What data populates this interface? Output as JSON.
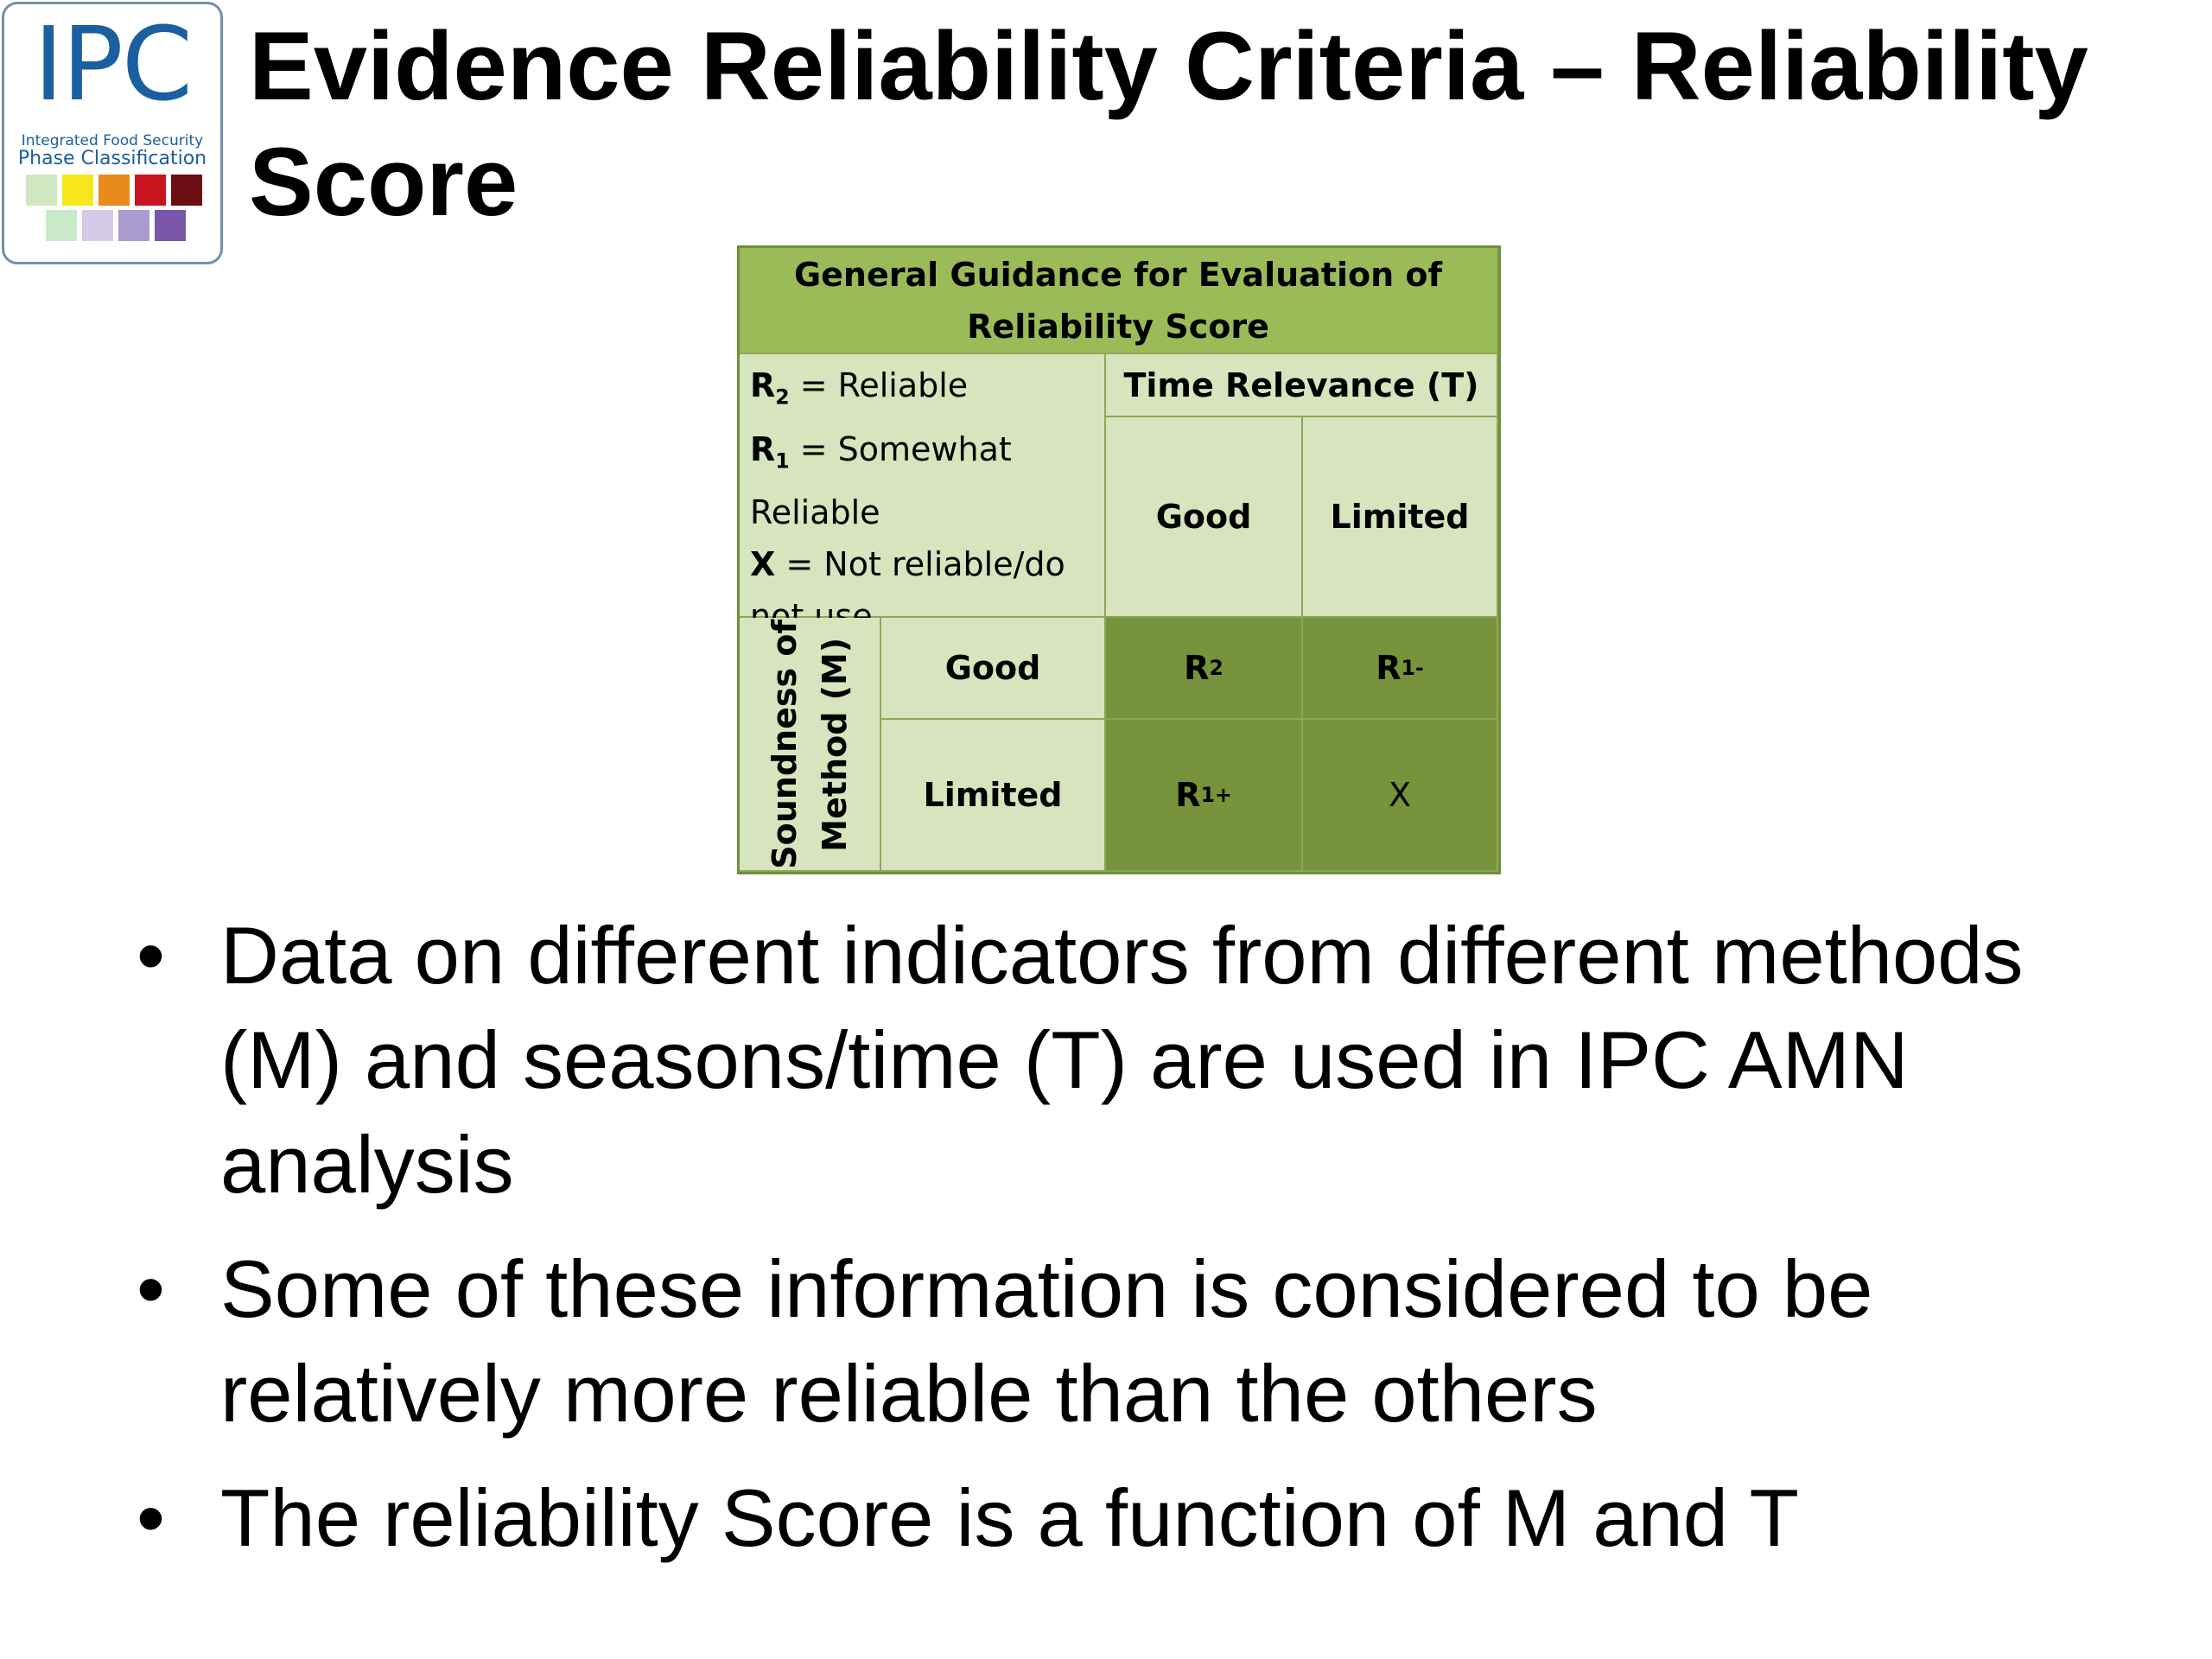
{
  "logo": {
    "acronym": "IPC",
    "line1": "Integrated Food Security",
    "line2": "Phase Classification",
    "swatch_colors_row1": [
      "#cfe8c0",
      "#f7e61c",
      "#e98a1c",
      "#c8141e",
      "#6b0e12"
    ],
    "swatch_colors_row2": [
      "#c9eac8",
      "#d6cbe6",
      "#a79ccd",
      "#7a56a8"
    ]
  },
  "title": "Evidence Reliability Criteria – Reliability Score",
  "table": {
    "header_line1": "General Guidance for Evaluation of",
    "header_line2": "Reliability Score",
    "legend": {
      "r2_symbol": "R",
      "r2_sub": "2",
      "r2_text": " = Reliable",
      "r1_symbol": "R",
      "r1_sub": "1",
      "r1_text": " = Somewhat",
      "r1_text2": "Reliable",
      "x_symbol": "X",
      "x_text": " = Not reliable/do",
      "x_text2": "not use"
    },
    "time_header": "Time Relevance (T)",
    "time_good": "Good",
    "time_limited": "Limited",
    "method_header_line1": "Soundness of",
    "method_header_line2": "Method (M)",
    "method_good": "Good",
    "method_limited": "Limited",
    "cells": {
      "good_good": {
        "base": "R",
        "sub": "2",
        "sup": ""
      },
      "good_limited": {
        "base": "R",
        "sub": "1",
        "sup": "-"
      },
      "limited_good": {
        "base": "R",
        "sub": "1",
        "sup": "+"
      },
      "limited_limited": {
        "base": "X",
        "sub": "",
        "sup": ""
      }
    }
  },
  "bullets": [
    "Data on different indicators from different methods (M) and seasons/time (T) are used in IPC AMN analysis",
    "Some of these information is considered to be relatively more reliable than the others",
    "The reliability Score is a function of M and T"
  ],
  "bullet_glyph": "•"
}
